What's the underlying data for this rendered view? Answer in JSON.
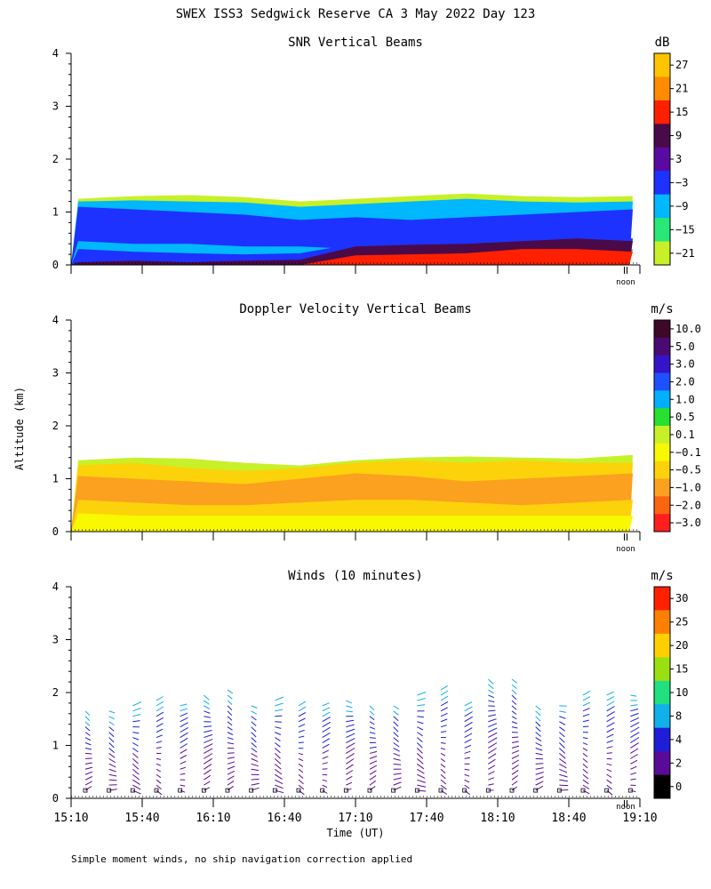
{
  "header": {
    "title": "SWEX ISS3 Sedgwick Reserve CA   3 May 2022 Day 123"
  },
  "footer": {
    "note": "Simple moment winds, no ship navigation correction applied"
  },
  "axes": {
    "ylabel": "Altitude (km)",
    "xlabel": "Time (UT)",
    "noon_label": "noon",
    "y_ticks": [
      0,
      1,
      2,
      3,
      4
    ],
    "ylim": [
      0,
      4
    ],
    "x_ticks": [
      "15:10",
      "15:40",
      "16:10",
      "16:40",
      "17:10",
      "17:40",
      "18:10",
      "18:40",
      "19:10"
    ],
    "x_tick_minutes": [
      910,
      940,
      970,
      1000,
      1030,
      1060,
      1090,
      1120,
      1150
    ],
    "xlim_minutes": [
      910,
      1150
    ],
    "noon_minutes": 1144
  },
  "chart_data": [
    {
      "type": "heatmap",
      "title": "SNR Vertical Beams",
      "colorbar": {
        "unit": "dB",
        "labels": [
          "27",
          "21",
          "15",
          "9",
          "3",
          "−3",
          "−9",
          "−15",
          "−21"
        ],
        "colors": [
          "#ffc400",
          "#ff8c00",
          "#ff2000",
          "#4a0a48",
          "#5a0aa0",
          "#1e32ff",
          "#00b8ff",
          "#28e878",
          "#c8f028"
        ]
      },
      "layers": [
        {
          "top": [
            1.25,
            1.3,
            1.32,
            1.28,
            1.2,
            1.25,
            1.3,
            1.35,
            1.3,
            1.28,
            1.3
          ],
          "color": "#c8f028"
        },
        {
          "top": [
            1.2,
            1.22,
            1.2,
            1.18,
            1.1,
            1.15,
            1.2,
            1.25,
            1.2,
            1.18,
            1.2
          ],
          "color": "#00b8ff"
        },
        {
          "top": [
            1.1,
            1.05,
            1.0,
            0.95,
            0.85,
            0.9,
            0.85,
            0.9,
            0.95,
            1.0,
            1.05
          ],
          "color": "#1e32ff"
        },
        {
          "top": [
            0.45,
            0.4,
            0.4,
            0.35,
            0.35,
            0.3,
            0.3,
            0.35,
            0.35,
            0.3,
            0.3
          ],
          "color": "#00b8ff"
        },
        {
          "top": [
            0.3,
            0.25,
            0.22,
            0.2,
            0.22,
            0.4,
            0.45,
            0.45,
            0.5,
            0.55,
            0.5
          ],
          "color": "#1e32ff"
        },
        {
          "top": [
            0.05,
            0.08,
            0.05,
            0.08,
            0.1,
            0.35,
            0.38,
            0.4,
            0.45,
            0.5,
            0.45
          ],
          "color": "#4a0a48"
        },
        {
          "top": [
            0.0,
            0.0,
            0.0,
            0.0,
            0.0,
            0.18,
            0.2,
            0.22,
            0.3,
            0.3,
            0.25
          ],
          "color": "#ff2000"
        }
      ]
    },
    {
      "type": "heatmap",
      "title": "Doppler Velocity Vertical Beams",
      "colorbar": {
        "unit": "m/s",
        "labels": [
          "10.0",
          "5.0",
          "3.0",
          "2.0",
          "1.0",
          "0.5",
          "0.1",
          "−0.1",
          "−0.5",
          "−1.0",
          "−2.0",
          "−3.0"
        ],
        "colors": [
          "#3c0a28",
          "#4a0a70",
          "#3414c8",
          "#1e50ff",
          "#00b0ff",
          "#28e030",
          "#c8f028",
          "#f8f800",
          "#fcd20a",
          "#fca020",
          "#fc6410",
          "#ff1e1e"
        ]
      },
      "layers": [
        {
          "top": [
            1.35,
            1.4,
            1.38,
            1.3,
            1.25,
            1.35,
            1.4,
            1.42,
            1.4,
            1.38,
            1.45
          ],
          "color": "#c8f028"
        },
        {
          "top": [
            1.25,
            1.3,
            1.2,
            1.15,
            1.2,
            1.3,
            1.35,
            1.3,
            1.35,
            1.3,
            1.3
          ],
          "color": "#fcd20a"
        },
        {
          "top": [
            1.05,
            1.0,
            0.95,
            0.9,
            1.0,
            1.1,
            1.05,
            0.95,
            1.0,
            1.05,
            1.1
          ],
          "color": "#fca020"
        },
        {
          "top": [
            0.6,
            0.55,
            0.5,
            0.5,
            0.55,
            0.6,
            0.6,
            0.55,
            0.5,
            0.55,
            0.6
          ],
          "color": "#fcd20a"
        },
        {
          "top": [
            0.35,
            0.3,
            0.3,
            0.3,
            0.3,
            0.3,
            0.3,
            0.3,
            0.3,
            0.3,
            0.3
          ],
          "color": "#f8f800"
        }
      ]
    },
    {
      "type": "wind_barbs",
      "title": "Winds (10 minutes)",
      "colorbar": {
        "unit": "m/s",
        "labels": [
          "30",
          "25",
          "20",
          "15",
          "10",
          "8",
          "4",
          "2",
          "0"
        ],
        "colors": [
          "#ff2000",
          "#ff8000",
          "#ffd000",
          "#9ae010",
          "#20e080",
          "#10b0e8",
          "#1e1ed8",
          "#5a0a98",
          "#000000"
        ]
      },
      "profile_times_minutes": [
        916,
        926,
        936,
        946,
        956,
        966,
        976,
        986,
        996,
        1006,
        1016,
        1026,
        1036,
        1046,
        1056,
        1066,
        1076,
        1086,
        1096,
        1106,
        1116,
        1126,
        1136,
        1146
      ],
      "profile_top_km": [
        1.7,
        1.7,
        1.8,
        1.9,
        1.85,
        2.05,
        2.15,
        1.85,
        1.9,
        1.85,
        1.8,
        1.9,
        1.85,
        1.85,
        2.0,
        2.1,
        1.85,
        2.35,
        2.35,
        1.8,
        1.85,
        2.0,
        2.0,
        2.05
      ]
    }
  ]
}
